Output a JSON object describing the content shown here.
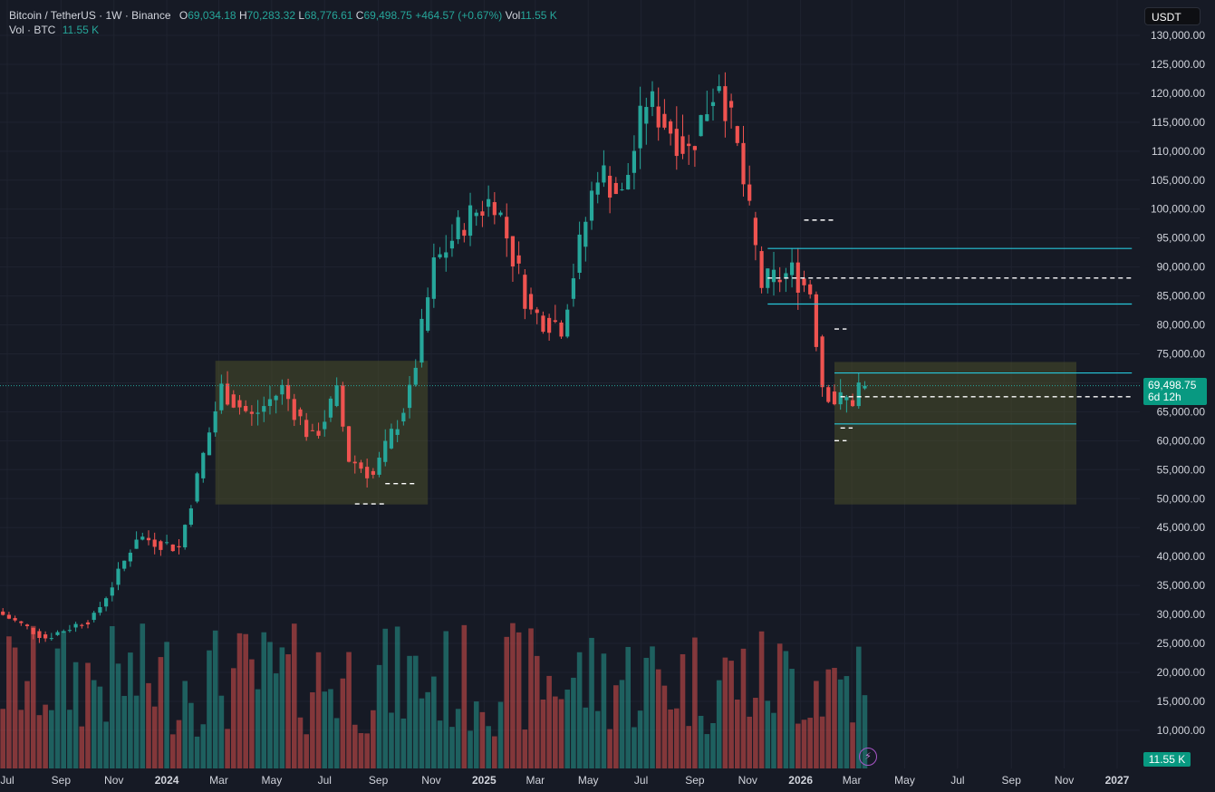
{
  "legend": {
    "symbol": "Bitcoin / TetherUS · 1W · Binance",
    "open_label": "O",
    "open": "69,034.18",
    "high_label": "H",
    "high": "70,283.32",
    "low_label": "L",
    "low": "68,776.61",
    "close_label": "C",
    "close": "69,498.75",
    "change": "+464.57 (+0.67%)",
    "vol_label": "Vol",
    "vol": "11.55 K",
    "vol_series": "Vol · BTC",
    "vol_series_value": "11.55 K"
  },
  "currency": "USDT",
  "last_price": "69,498.75",
  "countdown": "6d 12h",
  "volume_badge": "11.55 K",
  "flash_icon": "lightning-icon",
  "colors": {
    "up": "#26a69a",
    "down": "#ef5350",
    "background": "#161a25",
    "level_line": "#26c6da",
    "zone": "#4a4f2a"
  },
  "chart_data": {
    "type": "candlestick",
    "interval": "1W",
    "price_axis": {
      "ticks": [
        "130,000.00",
        "125,000.00",
        "120,000.00",
        "115,000.00",
        "110,000.00",
        "105,000.00",
        "100,000.00",
        "95,000.00",
        "90,000.00",
        "85,000.00",
        "80,000.00",
        "75,000.00",
        "70,000.00",
        "65,000.00",
        "60,000.00",
        "55,000.00",
        "50,000.00",
        "45,000.00",
        "40,000.00",
        "35,000.00",
        "30,000.00",
        "25,000.00",
        "20,000.00",
        "15,000.00",
        "10,000.00"
      ],
      "range": [
        5000,
        131500
      ]
    },
    "time_axis": {
      "ticks": [
        {
          "label": "Jul",
          "date": "2023-07-01"
        },
        {
          "label": "Sep",
          "date": "2023-09-01"
        },
        {
          "label": "Nov",
          "date": "2023-11-01"
        },
        {
          "label": "2024",
          "date": "2024-01-01",
          "bold": true
        },
        {
          "label": "Mar",
          "date": "2024-03-01"
        },
        {
          "label": "May",
          "date": "2024-05-01"
        },
        {
          "label": "Jul",
          "date": "2024-07-01"
        },
        {
          "label": "Sep",
          "date": "2024-09-01"
        },
        {
          "label": "Nov",
          "date": "2024-11-01"
        },
        {
          "label": "2025",
          "date": "2025-01-01",
          "bold": true
        },
        {
          "label": "Mar",
          "date": "2025-03-01"
        },
        {
          "label": "May",
          "date": "2025-05-01"
        },
        {
          "label": "Jul",
          "date": "2025-07-01"
        },
        {
          "label": "Sep",
          "date": "2025-09-01"
        },
        {
          "label": "Nov",
          "date": "2025-11-01"
        },
        {
          "label": "2026",
          "date": "2026-01-01",
          "bold": true
        },
        {
          "label": "Mar",
          "date": "2026-03-01"
        },
        {
          "label": "May",
          "date": "2026-05-01"
        },
        {
          "label": "Jul",
          "date": "2026-07-01"
        },
        {
          "label": "Sep",
          "date": "2026-09-01"
        },
        {
          "label": "Nov",
          "date": "2026-11-01"
        },
        {
          "label": "2027",
          "date": "2027-01-01",
          "bold": true
        }
      ]
    },
    "anchors": [
      {
        "date": "2023-06-26",
        "close": 30500
      },
      {
        "date": "2023-08-21",
        "close": 26000
      },
      {
        "date": "2023-10-16",
        "close": 29500
      },
      {
        "date": "2023-11-13",
        "close": 37000
      },
      {
        "date": "2023-12-04",
        "close": 43500
      },
      {
        "date": "2024-01-22",
        "close": 41500
      },
      {
        "date": "2024-02-26",
        "close": 61500
      },
      {
        "date": "2024-03-11",
        "close": 69000
      },
      {
        "date": "2024-04-15",
        "close": 64000
      },
      {
        "date": "2024-05-20",
        "close": 69000
      },
      {
        "date": "2024-06-24",
        "close": 60000
      },
      {
        "date": "2024-07-22",
        "close": 68000
      },
      {
        "date": "2024-08-05",
        "close": 57000
      },
      {
        "date": "2024-09-02",
        "close": 54000
      },
      {
        "date": "2024-10-14",
        "close": 68000
      },
      {
        "date": "2024-11-11",
        "close": 90000
      },
      {
        "date": "2024-12-16",
        "close": 98000
      },
      {
        "date": "2025-01-20",
        "close": 102000
      },
      {
        "date": "2025-03-03",
        "close": 82000
      },
      {
        "date": "2025-04-07",
        "close": 80000
      },
      {
        "date": "2025-05-19",
        "close": 107000
      },
      {
        "date": "2025-06-16",
        "close": 102000
      },
      {
        "date": "2025-07-14",
        "close": 119000
      },
      {
        "date": "2025-09-01",
        "close": 110000
      },
      {
        "date": "2025-10-06",
        "close": 123000
      },
      {
        "date": "2025-10-27",
        "close": 110000
      },
      {
        "date": "2025-11-24",
        "close": 87000
      },
      {
        "date": "2025-12-29",
        "close": 89000
      },
      {
        "date": "2026-01-19",
        "close": 86000
      },
      {
        "date": "2026-02-02",
        "close": 70000
      },
      {
        "date": "2026-02-16",
        "close": 67000
      },
      {
        "date": "2026-03-09",
        "close": 67000
      },
      {
        "date": "2026-03-16",
        "close": 69498.75
      }
    ],
    "overlays": {
      "zones": [
        {
          "start": "2024-02-26",
          "end": "2024-10-28",
          "low": 49000,
          "high": 73800
        },
        {
          "start": "2026-02-09",
          "end": "2026-11-15",
          "low": 49000,
          "high": 73600
        }
      ],
      "solid_levels": [
        {
          "start": "2025-11-24",
          "end": "2027-01-18",
          "price": 93200
        },
        {
          "start": "2025-11-24",
          "end": "2027-01-18",
          "price": 83600
        },
        {
          "start": "2026-02-09",
          "end": "2027-01-18",
          "price": 71700
        },
        {
          "start": "2026-02-09",
          "end": "2026-11-15",
          "price": 62900
        }
      ],
      "dashed_levels": [
        {
          "start": "2025-11-24",
          "end": "2027-01-18",
          "price": 88100
        },
        {
          "start": "2026-02-16",
          "end": "2027-01-18",
          "price": 67600
        },
        {
          "start": "2024-08-05",
          "end": "2024-09-09",
          "price": 49100
        },
        {
          "start": "2024-09-09",
          "end": "2024-10-14",
          "price": 52600
        },
        {
          "start": "2026-01-05",
          "end": "2026-02-09",
          "price": 98100
        },
        {
          "start": "2026-02-09",
          "end": "2026-02-23",
          "price": 79300
        },
        {
          "start": "2026-02-09",
          "end": "2026-02-23",
          "price": 60000
        },
        {
          "start": "2026-02-16",
          "end": "2026-03-02",
          "price": 62200
        }
      ]
    },
    "volume": {
      "last": "11.55 K",
      "range_btc": [
        0,
        30000
      ]
    }
  }
}
